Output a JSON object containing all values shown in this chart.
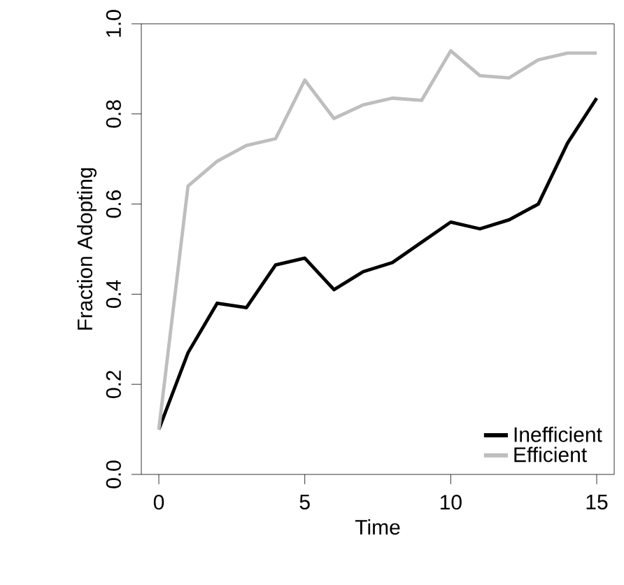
{
  "chart_data": {
    "type": "line",
    "xlabel": "Time",
    "ylabel": "Fraction Adopting",
    "x": [
      0,
      1,
      2,
      3,
      4,
      5,
      6,
      7,
      8,
      9,
      10,
      11,
      12,
      13,
      14,
      15
    ],
    "series": [
      {
        "name": "Inefficient",
        "color": "#000000",
        "values": [
          0.1,
          0.27,
          0.38,
          0.37,
          0.465,
          0.48,
          0.41,
          0.45,
          0.47,
          0.515,
          0.56,
          0.545,
          0.565,
          0.6,
          0.735,
          0.835
        ]
      },
      {
        "name": "Efficient",
        "color": "#bebebe",
        "values": [
          0.1,
          0.64,
          0.695,
          0.73,
          0.745,
          0.875,
          0.79,
          0.82,
          0.835,
          0.83,
          0.94,
          0.885,
          0.88,
          0.92,
          0.935,
          0.935
        ]
      }
    ],
    "xlim": [
      -0.6,
      15.6
    ],
    "ylim": [
      0,
      1
    ],
    "xticks": [
      0,
      5,
      10,
      15
    ],
    "yticks": [
      {
        "value": 0,
        "label": "0.0"
      },
      {
        "value": 0.2,
        "label": "0.2"
      },
      {
        "value": 0.4,
        "label": "0.4"
      },
      {
        "value": 0.6,
        "label": "0.6"
      },
      {
        "value": 0.8,
        "label": "0.8"
      },
      {
        "value": 1,
        "label": "1.0"
      }
    ],
    "legend": "bottom right",
    "grid": false,
    "marker": "none",
    "line_style": "solid"
  }
}
